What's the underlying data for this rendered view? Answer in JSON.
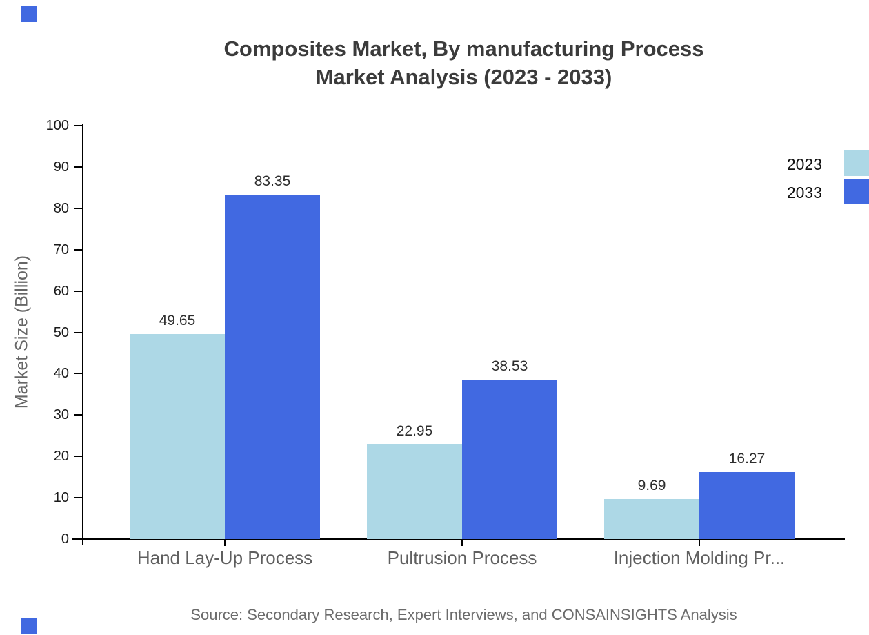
{
  "title": {
    "line1": "Composites Market, By manufacturing Process",
    "line2": "Market Analysis (2023 - 2033)"
  },
  "chart_data": {
    "type": "bar",
    "categories": [
      "Hand Lay-Up Process",
      "Pultrusion Process",
      "Injection Molding Pr..."
    ],
    "series": [
      {
        "name": "2023",
        "color": "#ADD8E6",
        "values": [
          49.65,
          22.95,
          9.69
        ]
      },
      {
        "name": "2033",
        "color": "#4169E1",
        "values": [
          83.35,
          38.53,
          16.27
        ]
      }
    ],
    "title": "Composites Market, By manufacturing Process Market Analysis (2023 - 2033)",
    "xlabel": "",
    "ylabel": "Market Size (Billion)",
    "ylim": [
      0,
      100
    ],
    "yticks": [
      0,
      10,
      20,
      30,
      40,
      50,
      60,
      70,
      80,
      90,
      100
    ],
    "grid": false,
    "legend_position": "top-right",
    "value_labels": true
  },
  "legend": {
    "items": [
      {
        "label": "2023",
        "color": "#ADD8E6"
      },
      {
        "label": "2033",
        "color": "#4169E1"
      }
    ]
  },
  "source": "Source: Secondary Research, Expert Interviews, and CONSAINSIGHTS Analysis",
  "colors": {
    "bar_2023": "#ADD8E6",
    "bar_2033": "#4169E1",
    "corner_square": "#4169E1",
    "axis": "#000000",
    "title_text": "#3b3b3b",
    "muted_text": "#6b6b6b"
  }
}
